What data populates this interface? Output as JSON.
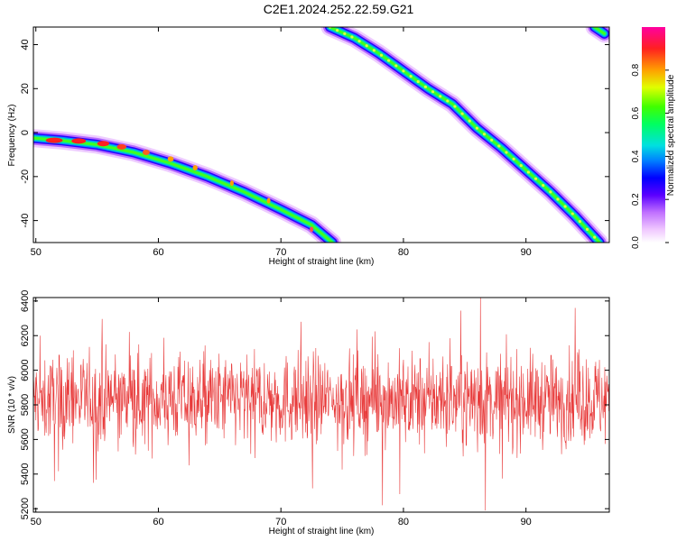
{
  "title": "C2E1.2024.252.22.59.G21",
  "chart_data": [
    {
      "type": "heatmap",
      "xlabel": "Height of straight line (km)",
      "ylabel": "Frequency (Hz)",
      "xlim": [
        49.8,
        96.8
      ],
      "ylim": [
        -50,
        48
      ],
      "xticks": [
        50,
        60,
        70,
        80,
        90
      ],
      "yticks": [
        -40,
        -20,
        0,
        20,
        40
      ],
      "colorbar": {
        "label": "Normalized spectral amplitude",
        "range": [
          0.0,
          1.0
        ],
        "ticks": [
          "0.0",
          "0.2",
          "0.4",
          "0.6",
          "0.8"
        ]
      },
      "ridges": [
        {
          "x": [
            49.8,
            52,
            55,
            58,
            61,
            64,
            67,
            70,
            72.5,
            74.2
          ],
          "y": [
            -2.5,
            -3.5,
            -5.5,
            -9,
            -14,
            -20,
            -27,
            -35,
            -42,
            -50
          ]
        },
        {
          "x": [
            74,
            76,
            78,
            80,
            82,
            84,
            86,
            88,
            90,
            92,
            94,
            96
          ],
          "y": [
            48,
            43,
            36,
            28,
            20,
            13,
            2,
            -7,
            -17,
            -27,
            -38,
            -50
          ]
        },
        {
          "x": [
            95.6,
            96.4
          ],
          "y": [
            48,
            45
          ]
        }
      ]
    },
    {
      "type": "line",
      "xlabel": "Height of straight line (km)",
      "ylabel": "SNR (10 * v/v)",
      "xlim": [
        49.8,
        96.8
      ],
      "ylim": [
        5180,
        6420
      ],
      "xticks": [
        50,
        60,
        70,
        80,
        90
      ],
      "yticks": [
        5200,
        5400,
        5600,
        5800,
        6000,
        6200,
        6400
      ],
      "series": [
        {
          "color": "#e83a3a",
          "mean": 5830,
          "spread": 130,
          "spikes": [
            [
              86.7,
              5190
            ],
            [
              86.3,
              6420
            ],
            [
              94.0,
              6360
            ],
            [
              51.5,
              5360
            ],
            [
              62.5,
              5450
            ]
          ]
        }
      ]
    }
  ]
}
